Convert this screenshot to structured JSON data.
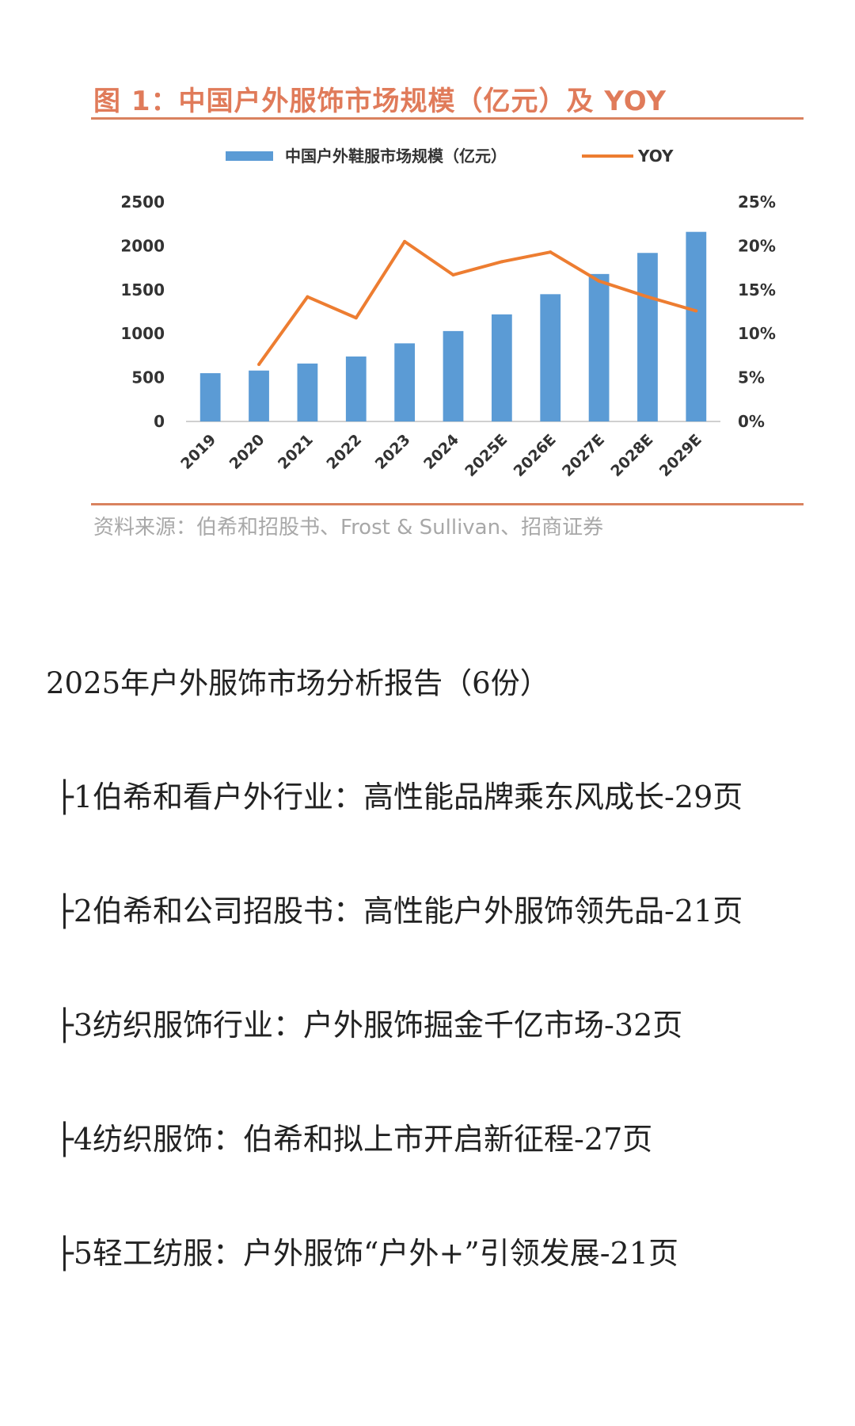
{
  "figure": {
    "title": "图 1：中国户外服饰市场规模（亿元）及 YOY",
    "source": "资料来源：伯希和招股书、Frost & Sullivan、招商证券"
  },
  "chart_data": {
    "type": "bar",
    "title": "图 1：中国户外服饰市场规模（亿元）及 YOY",
    "categories": [
      "2019",
      "2020",
      "2021",
      "2022",
      "2023",
      "2024",
      "2025E",
      "2026E",
      "2027E",
      "2028E",
      "2029E"
    ],
    "series": [
      {
        "name": "中国户外鞋服市场规模（亿元）",
        "type": "bar",
        "axis": "left",
        "values": [
          550,
          580,
          660,
          740,
          890,
          1030,
          1220,
          1450,
          1680,
          1920,
          2160
        ]
      },
      {
        "name": "YOY",
        "type": "line",
        "axis": "right",
        "values": [
          null,
          6.5,
          14.2,
          11.8,
          20.5,
          16.7,
          18.2,
          19.3,
          16.0,
          14.2,
          12.6
        ]
      }
    ],
    "yleft": {
      "ticks": [
        "0",
        "500",
        "1000",
        "1500",
        "2000",
        "2500"
      ],
      "lim": [
        0,
        2500
      ]
    },
    "yright": {
      "ticks": [
        "0%",
        "5%",
        "10%",
        "15%",
        "20%",
        "25%"
      ],
      "lim": [
        0,
        25
      ]
    },
    "legend": "top-center",
    "grid": false,
    "colors": {
      "bar": "#5b9bd5",
      "line": "#ed7d31"
    }
  },
  "document": {
    "title": "2025年户外服饰市场分析报告（6份）",
    "items": [
      "├1伯希和看户外行业：高性能品牌乘东风成长-29页",
      "├2伯希和公司招股书：高性能户外服饰领先品-21页",
      "├3纺织服饰行业：户外服饰掘金千亿市场-32页",
      "├4纺织服饰：伯希和拟上市开启新征程-27页",
      "├5轻工纺服：户外服饰“户外+”引领发展-21页"
    ]
  }
}
